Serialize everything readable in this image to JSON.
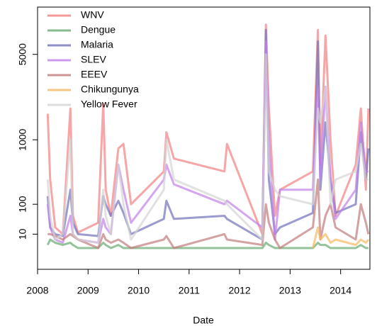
{
  "chart_data": {
    "type": "line",
    "x_label": "Date",
    "yscale": "cube-root",
    "legend": "top-left",
    "xlim": [
      2008,
      2014.58
    ],
    "xticks": [
      2008,
      2009,
      2010,
      2011,
      2012,
      2013,
      2014
    ],
    "ylim": [
      0,
      9300
    ],
    "yticks": [
      10,
      100,
      1000,
      5000
    ],
    "x": [
      2008.2,
      2008.25,
      2008.35,
      2008.5,
      2008.65,
      2008.7,
      2008.8,
      2009.2,
      2009.3,
      2009.35,
      2009.45,
      2009.6,
      2009.7,
      2009.85,
      2010.5,
      2010.55,
      2010.7,
      2011.7,
      2011.75,
      2012.45,
      2012.52,
      2012.58,
      2012.7,
      2012.8,
      2013.45,
      2013.55,
      2013.6,
      2013.7,
      2013.8,
      2013.9,
      2014.3,
      2014.4,
      2014.5,
      2014.55
    ],
    "series": [
      {
        "name": "WNV",
        "color": "#f28080",
        "values": [
          1800,
          300,
          20,
          10,
          2000,
          50,
          12,
          30,
          2200,
          200,
          50,
          800,
          900,
          100,
          400,
          1200,
          600,
          400,
          900,
          10,
          7500,
          2000,
          50,
          200,
          400,
          7000,
          500,
          6500,
          1000,
          50,
          500,
          2000,
          200,
          2000
        ]
      },
      {
        "name": "Dengue",
        "color": "#66aa70",
        "values": [
          2,
          5,
          3,
          2,
          3,
          2,
          1,
          1,
          3,
          2,
          1,
          2,
          1,
          1,
          1,
          1,
          1,
          1,
          1,
          1,
          3,
          2,
          1,
          1,
          1,
          3,
          2,
          2,
          1,
          1,
          1,
          2,
          1,
          1
        ]
      },
      {
        "name": "Malaria",
        "color": "#7070bb",
        "values": [
          150,
          20,
          10,
          8,
          200,
          30,
          10,
          8,
          150,
          100,
          50,
          120,
          60,
          10,
          40,
          120,
          40,
          50,
          40,
          5,
          7000,
          300,
          10,
          20,
          60,
          6000,
          200,
          1500,
          300,
          60,
          100,
          1200,
          300,
          800
        ]
      },
      {
        "name": "SLEV",
        "color": "#c080e8",
        "values": [
          100,
          20,
          5,
          3,
          50,
          10,
          5,
          3,
          40,
          20,
          10,
          500,
          200,
          30,
          300,
          500,
          250,
          100,
          120,
          20,
          6000,
          1000,
          5,
          200,
          200,
          3000,
          300,
          3000,
          300,
          40,
          200,
          1500,
          400,
          400
        ]
      },
      {
        "name": "EEEV",
        "color": "#c07a7a",
        "values": [
          10,
          10,
          8,
          5,
          10,
          8,
          5,
          1,
          10,
          5,
          3,
          5,
          3,
          1,
          5,
          8,
          1,
          10,
          5,
          2,
          100,
          30,
          5,
          1,
          20,
          300,
          5,
          50,
          100,
          20,
          5,
          100,
          30,
          10
        ]
      },
      {
        "name": "Chikungunya",
        "color": "#f5b860",
        "values": [
          null,
          null,
          null,
          null,
          null,
          null,
          null,
          null,
          null,
          null,
          null,
          null,
          null,
          null,
          null,
          null,
          null,
          null,
          null,
          null,
          null,
          null,
          null,
          null,
          1,
          20,
          5,
          10,
          3,
          5,
          2,
          5,
          3,
          5
        ]
      },
      {
        "name": "Yellow Fever",
        "color": "#d4d4d4",
        "values": [
          300,
          50,
          5,
          10,
          1000,
          10,
          5,
          3,
          200,
          50,
          10,
          500,
          100,
          5,
          200,
          1000,
          300,
          120,
          100,
          5,
          5000,
          400,
          200,
          150,
          100,
          2000,
          1500,
          3000,
          100,
          300,
          400,
          900,
          300,
          300
        ]
      }
    ]
  }
}
